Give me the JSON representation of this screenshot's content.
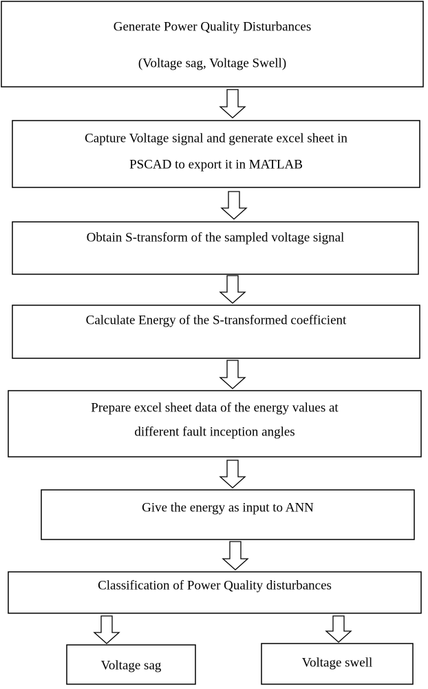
{
  "nodes": [
    {
      "lines": [
        "Generate Power Quality Disturbances",
        "(Voltage sag, Voltage Swell)"
      ]
    },
    {
      "lines": [
        "Capture Voltage signal and generate excel sheet in",
        "PSCAD to export it in MATLAB"
      ]
    },
    {
      "lines": [
        "Obtain S-transform of the sampled voltage signal"
      ]
    },
    {
      "lines": [
        "Calculate Energy of the S-transformed coefficient"
      ]
    },
    {
      "lines": [
        "Prepare excel sheet data of the energy values at",
        "different fault inception angles"
      ]
    },
    {
      "lines": [
        "Give the energy as input to ANN"
      ]
    },
    {
      "lines": [
        "Classification of Power Quality disturbances"
      ]
    },
    {
      "lines": [
        "Voltage sag"
      ]
    },
    {
      "lines": [
        "Voltage swell"
      ]
    }
  ]
}
